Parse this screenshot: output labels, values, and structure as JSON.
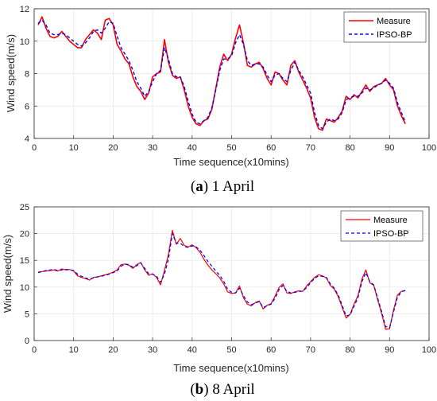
{
  "colors": {
    "measure": "#ff0000",
    "ipso": "#0000ff",
    "grid": "#e6e6e6",
    "axis": "#262626"
  },
  "chart_data": [
    {
      "type": "line",
      "caption_label": "a",
      "caption_text": " 1 April",
      "xlabel": "Time sequence(x10mins)",
      "ylabel": "Wind speed(m/s)",
      "xlim": [
        0,
        100
      ],
      "ylim": [
        4,
        12
      ],
      "xticks": [
        "0",
        "10",
        "20",
        "30",
        "40",
        "50",
        "60",
        "70",
        "80",
        "90",
        "100"
      ],
      "yticks": [
        "4",
        "6",
        "8",
        "10",
        "12"
      ],
      "grid": true,
      "legend": "top-right",
      "x": [
        1,
        2,
        3,
        4,
        5,
        6,
        7,
        8,
        9,
        10,
        11,
        12,
        13,
        14,
        15,
        16,
        17,
        18,
        19,
        20,
        21,
        22,
        23,
        24,
        25,
        26,
        27,
        28,
        29,
        30,
        31,
        32,
        33,
        34,
        35,
        36,
        37,
        38,
        39,
        40,
        41,
        42,
        43,
        44,
        45,
        46,
        47,
        48,
        49,
        50,
        51,
        52,
        53,
        54,
        55,
        56,
        57,
        58,
        59,
        60,
        61,
        62,
        63,
        64,
        65,
        66,
        67,
        68,
        69,
        70,
        71,
        72,
        73,
        74,
        75,
        76,
        77,
        78,
        79,
        80,
        81,
        82,
        83,
        84,
        85,
        86,
        87,
        88,
        89,
        90,
        91,
        92,
        93,
        94
      ],
      "series": [
        {
          "name": "Measure",
          "style": "solid",
          "width": 1.6,
          "values": [
            11.0,
            11.5,
            10.8,
            10.3,
            10.2,
            10.3,
            10.6,
            10.3,
            10.0,
            9.8,
            9.6,
            9.6,
            10.1,
            10.4,
            10.7,
            10.5,
            10.1,
            11.3,
            11.4,
            11.0,
            9.8,
            9.4,
            8.9,
            8.6,
            7.8,
            7.2,
            6.9,
            6.4,
            6.8,
            7.8,
            8.0,
            8.1,
            10.1,
            8.7,
            7.9,
            7.7,
            7.8,
            7.0,
            6.0,
            5.3,
            4.9,
            4.8,
            5.1,
            5.2,
            5.8,
            7.1,
            8.4,
            9.2,
            8.8,
            9.2,
            10.2,
            11.0,
            9.9,
            8.5,
            8.4,
            8.6,
            8.7,
            8.3,
            7.7,
            7.3,
            8.1,
            8.0,
            7.6,
            7.3,
            8.5,
            8.8,
            8.1,
            7.6,
            7.1,
            6.5,
            5.3,
            4.6,
            4.5,
            5.2,
            5.1,
            5.0,
            5.3,
            5.7,
            6.6,
            6.4,
            6.7,
            6.5,
            6.9,
            7.3,
            6.9,
            7.2,
            7.3,
            7.4,
            7.7,
            7.3,
            7.0,
            6.0,
            5.4,
            4.9
          ]
        },
        {
          "name": "IPSO-BP",
          "style": "dashed",
          "width": 1.4,
          "values": [
            11.1,
            11.3,
            11.0,
            10.5,
            10.4,
            10.4,
            10.5,
            10.4,
            10.2,
            10.0,
            9.8,
            9.7,
            9.9,
            10.2,
            10.6,
            10.7,
            10.5,
            10.8,
            11.2,
            11.1,
            10.3,
            9.6,
            9.2,
            8.8,
            8.2,
            7.5,
            7.1,
            6.6,
            6.9,
            7.5,
            8.0,
            8.2,
            9.6,
            8.9,
            8.0,
            7.8,
            7.8,
            7.2,
            6.3,
            5.5,
            5.0,
            4.9,
            5.1,
            5.3,
            5.9,
            7.0,
            8.2,
            8.9,
            8.9,
            9.1,
            9.9,
            10.4,
            9.8,
            8.8,
            8.5,
            8.6,
            8.6,
            8.4,
            7.9,
            7.5,
            7.9,
            8.0,
            7.7,
            7.5,
            8.2,
            8.7,
            8.2,
            7.8,
            7.3,
            6.8,
            5.6,
            4.8,
            4.6,
            5.0,
            5.2,
            5.1,
            5.2,
            5.6,
            6.4,
            6.5,
            6.6,
            6.6,
            6.8,
            7.1,
            7.0,
            7.1,
            7.3,
            7.4,
            7.6,
            7.4,
            7.1,
            6.2,
            5.6,
            5.0
          ]
        }
      ]
    },
    {
      "type": "line",
      "caption_label": "b",
      "caption_text": " 8 April",
      "xlabel": "Time sequence(x10mins)",
      "ylabel": "Wind speed(m/s)",
      "xlim": [
        0,
        100
      ],
      "ylim": [
        0,
        25
      ],
      "xticks": [
        "0",
        "10",
        "20",
        "30",
        "40",
        "50",
        "60",
        "70",
        "80",
        "90",
        "100"
      ],
      "yticks": [
        "0",
        "5",
        "10",
        "15",
        "20",
        "25"
      ],
      "grid": true,
      "legend": "top-right",
      "x": [
        1,
        2,
        3,
        4,
        5,
        6,
        7,
        8,
        9,
        10,
        11,
        12,
        13,
        14,
        15,
        16,
        17,
        18,
        19,
        20,
        21,
        22,
        23,
        24,
        25,
        26,
        27,
        28,
        29,
        30,
        31,
        32,
        33,
        34,
        35,
        36,
        37,
        38,
        39,
        40,
        41,
        42,
        43,
        44,
        45,
        46,
        47,
        48,
        49,
        50,
        51,
        52,
        53,
        54,
        55,
        56,
        57,
        58,
        59,
        60,
        61,
        62,
        63,
        64,
        65,
        66,
        67,
        68,
        69,
        70,
        71,
        72,
        73,
        74,
        75,
        76,
        77,
        78,
        79,
        80,
        81,
        82,
        83,
        84,
        85,
        86,
        87,
        88,
        89,
        90,
        91,
        92,
        93,
        94
      ],
      "series": [
        {
          "name": "Measure",
          "style": "solid",
          "width": 1.2,
          "values": [
            12.8,
            12.9,
            13.0,
            13.1,
            13.2,
            13.0,
            13.4,
            13.2,
            13.3,
            13.0,
            12.1,
            11.8,
            11.6,
            11.3,
            11.8,
            11.9,
            12.1,
            12.3,
            12.5,
            12.8,
            13.2,
            14.2,
            14.3,
            14.1,
            13.5,
            14.2,
            14.6,
            13.2,
            12.2,
            12.5,
            11.8,
            10.4,
            13.1,
            16.1,
            20.6,
            18.0,
            19.1,
            17.8,
            17.5,
            17.9,
            17.4,
            16.5,
            15.2,
            14.1,
            13.2,
            12.5,
            11.7,
            10.6,
            9.1,
            8.8,
            8.9,
            10.2,
            8.0,
            6.8,
            6.5,
            7.1,
            7.4,
            5.9,
            6.6,
            6.9,
            8.3,
            9.9,
            10.6,
            8.9,
            8.8,
            9.1,
            9.3,
            9.2,
            10.2,
            11.0,
            11.8,
            12.3,
            12.1,
            11.7,
            10.3,
            9.6,
            8.2,
            6.2,
            4.2,
            4.9,
            6.8,
            8.4,
            11.5,
            13.2,
            10.8,
            10.3,
            7.6,
            5.0,
            2.1,
            2.2,
            5.7,
            8.5,
            9.2,
            9.3
          ]
        },
        {
          "name": "IPSO-BP",
          "style": "dashed",
          "width": 1.2,
          "values": [
            12.7,
            12.9,
            13.1,
            13.2,
            13.3,
            13.1,
            13.2,
            13.3,
            13.2,
            13.1,
            12.4,
            12.0,
            11.7,
            11.5,
            11.7,
            11.9,
            12.0,
            12.2,
            12.4,
            12.7,
            13.0,
            13.9,
            14.3,
            14.2,
            13.7,
            14.0,
            14.5,
            13.5,
            12.5,
            12.4,
            12.0,
            10.9,
            12.4,
            15.2,
            20.0,
            18.2,
            18.2,
            17.6,
            17.4,
            17.7,
            17.5,
            16.9,
            15.9,
            14.8,
            13.9,
            13.0,
            12.2,
            11.1,
            9.6,
            9.0,
            8.9,
            9.8,
            8.4,
            7.2,
            6.7,
            7.0,
            7.3,
            6.2,
            6.5,
            6.8,
            7.9,
            9.5,
            10.3,
            9.2,
            8.9,
            9.0,
            9.2,
            9.2,
            9.9,
            10.8,
            11.6,
            12.1,
            12.0,
            11.8,
            10.6,
            9.8,
            8.5,
            6.6,
            4.6,
            4.8,
            6.4,
            8.0,
            11.0,
            12.7,
            11.0,
            10.4,
            7.9,
            5.4,
            2.6,
            2.4,
            5.3,
            8.1,
            9.1,
            9.4
          ]
        }
      ]
    }
  ]
}
